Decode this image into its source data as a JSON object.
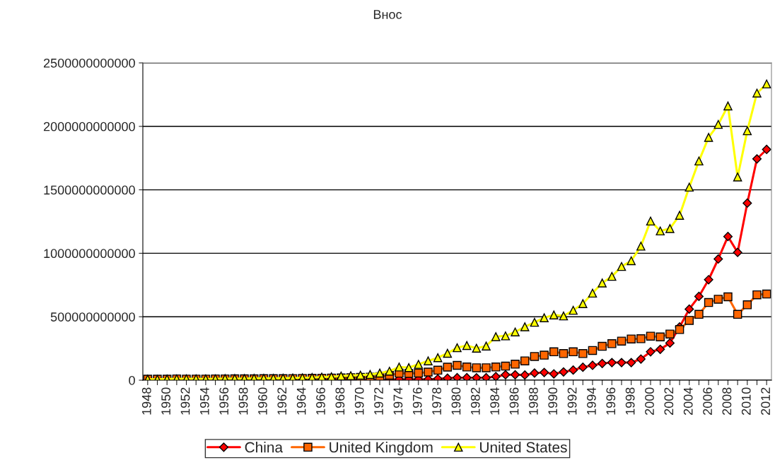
{
  "chart_data": {
    "type": "line",
    "title": "Внос",
    "categories": [
      "1948",
      null,
      "1950",
      null,
      "1952",
      null,
      "1954",
      null,
      "1956",
      null,
      "1958",
      null,
      "1960",
      null,
      "1962",
      null,
      "1964",
      null,
      "1966",
      null,
      "1968",
      null,
      "1970",
      null,
      "1972",
      null,
      "1974",
      null,
      "1976",
      null,
      "1978",
      null,
      "1980",
      null,
      "1982",
      null,
      "1984",
      null,
      "1986",
      null,
      "1988",
      null,
      "1990",
      null,
      "1992",
      null,
      "1994",
      null,
      "1996",
      null,
      "1998",
      null,
      "2000",
      null,
      "2002",
      null,
      "2004",
      null,
      "2006",
      null,
      "2008",
      null,
      "2010",
      null,
      "2012"
    ],
    "series": [
      {
        "name": "China",
        "color": "#ff0000",
        "marker": "diamond",
        "values": [
          null,
          null,
          null,
          null,
          null,
          null,
          null,
          null,
          null,
          null,
          null,
          null,
          null,
          null,
          null,
          null,
          null,
          null,
          3000000000.0,
          2000000000.0,
          2000000000.0,
          2000000000.0,
          2000000000.0,
          2000000000.0,
          3000000000.0,
          5000000000.0,
          7000000000.0,
          7000000000.0,
          7000000000.0,
          7000000000.0,
          11000000000.0,
          16000000000.0,
          20000000000.0,
          20000000000.0,
          19000000000.0,
          20000000000.0,
          28000000000.0,
          43000000000.0,
          43000000000.0,
          41000000000.0,
          56000000000.0,
          61000000000.0,
          50000000000.0,
          65000000000.0,
          80000000000.0,
          102000000000.0,
          117000000000.0,
          132000000000.0,
          139000000000.0,
          139000000000.0,
          139000000000.0,
          167000000000.0,
          224000000000.0,
          243000000000.0,
          293000000000.0,
          419000000000.0,
          560000000000.0,
          660000000000.0,
          792000000000.0,
          955000000000.0,
          1132000000000.0,
          1007000000000.0,
          1395000000000.0,
          1744000000000.0,
          1818000000000.0
        ]
      },
      {
        "name": "United Kingdom",
        "color": "#ff6600",
        "marker": "square",
        "values": [
          8000000000.0,
          8000000000.0,
          8000000000.0,
          10000000000.0,
          9000000000.0,
          9000000000.0,
          9000000000.0,
          10000000000.0,
          10000000000.0,
          11000000000.0,
          11000000000.0,
          11000000000.0,
          12000000000.0,
          12000000000.0,
          12000000000.0,
          13000000000.0,
          14000000000.0,
          15000000000.0,
          16000000000.0,
          17000000000.0,
          18000000000.0,
          20000000000.0,
          22000000000.0,
          24000000000.0,
          28000000000.0,
          39000000000.0,
          55000000000.0,
          53000000000.0,
          56000000000.0,
          64000000000.0,
          79000000000.0,
          103000000000.0,
          117000000000.0,
          104000000000.0,
          98000000000.0,
          98000000000.0,
          104000000000.0,
          111000000000.0,
          126000000000.0,
          152000000000.0,
          187000000000.0,
          197000000000.0,
          224000000000.0,
          210000000000.0,
          224000000000.0,
          210000000000.0,
          234000000000.0,
          267000000000.0,
          288000000000.0,
          308000000000.0,
          325000000000.0,
          327000000000.0,
          347000000000.0,
          341000000000.0,
          364000000000.0,
          399000000000.0,
          471000000000.0,
          519000000000.0,
          612000000000.0,
          638000000000.0,
          657000000000.0,
          519000000000.0,
          594000000000.0,
          673000000000.0,
          679000000000.0
        ]
      },
      {
        "name": "United States",
        "color": "#ffff00",
        "marker": "triangle",
        "values": [
          8000000000.0,
          7000000000.0,
          9000000000.0,
          11000000000.0,
          11000000000.0,
          11000000000.0,
          10000000000.0,
          11000000000.0,
          13000000000.0,
          13000000000.0,
          13000000000.0,
          15000000000.0,
          15000000000.0,
          15000000000.0,
          16000000000.0,
          17000000000.0,
          19000000000.0,
          21000000000.0,
          25000000000.0,
          27000000000.0,
          33000000000.0,
          36000000000.0,
          40000000000.0,
          45000000000.0,
          56000000000.0,
          71000000000.0,
          104000000000.0,
          99000000000.0,
          125000000000.0,
          152000000000.0,
          177000000000.0,
          212000000000.0,
          256000000000.0,
          273000000000.0,
          252000000000.0,
          269000000000.0,
          343000000000.0,
          349000000000.0,
          380000000000.0,
          421000000000.0,
          456000000000.0,
          492000000000.0,
          514000000000.0,
          506000000000.0,
          551000000000.0,
          603000000000.0,
          686000000000.0,
          766000000000.0,
          818000000000.0,
          896000000000.0,
          941000000000.0,
          1056000000000.0,
          1254000000000.0,
          1176000000000.0,
          1195000000000.0,
          1299000000000.0,
          1521000000000.0,
          1727000000000.0,
          1913000000000.0,
          2015000000000.0,
          2161000000000.0,
          1601000000000.0,
          1965000000000.0,
          2262000000000.0,
          2334000000000.0
        ]
      }
    ],
    "ylim": [
      0,
      2500000000000
    ],
    "yticks": [
      0,
      500000000000,
      1000000000000,
      1500000000000,
      2000000000000,
      2500000000000
    ],
    "grid": "y",
    "legend": "bottom",
    "line_style": "solid"
  }
}
